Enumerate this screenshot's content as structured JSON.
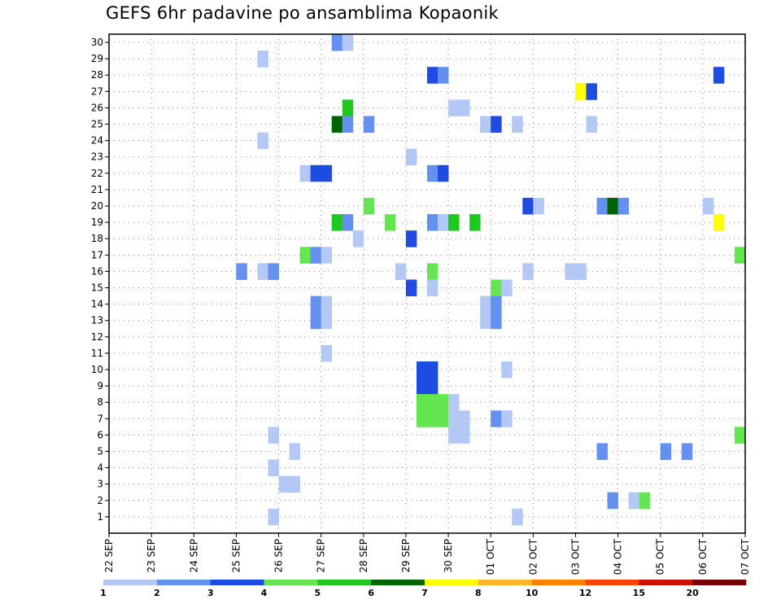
{
  "chart_data": {
    "type": "heatmap",
    "title": "GEFS 6hr padavine po ansamblima Kopaonik",
    "y_categories": [
      "1",
      "2",
      "3",
      "4",
      "5",
      "6",
      "7",
      "8",
      "9",
      "10",
      "11",
      "12",
      "13",
      "14",
      "15",
      "16",
      "17",
      "18",
      "19",
      "20",
      "21",
      "22",
      "23",
      "24",
      "25",
      "26",
      "27",
      "28",
      "29",
      "30"
    ],
    "x_ticks": [
      {
        "t": 0,
        "label": "22 SEP"
      },
      {
        "t": 4,
        "label": "23 SEP"
      },
      {
        "t": 8,
        "label": "24 SEP"
      },
      {
        "t": 12,
        "label": "25 SEP"
      },
      {
        "t": 16,
        "label": "26 SEP"
      },
      {
        "t": 20,
        "label": "27 SEP"
      },
      {
        "t": 24,
        "label": "28 SEP"
      },
      {
        "t": 28,
        "label": "29 SEP"
      },
      {
        "t": 32,
        "label": "30 SEP"
      },
      {
        "t": 36,
        "label": "01 OCT"
      },
      {
        "t": 40,
        "label": "02 OCT"
      },
      {
        "t": 44,
        "label": "03 OCT"
      },
      {
        "t": 48,
        "label": "04 OCT"
      },
      {
        "t": 52,
        "label": "05 OCT"
      },
      {
        "t": 56,
        "label": "06 OCT"
      },
      {
        "t": 60,
        "label": "07 OCT"
      }
    ],
    "x_unit": "6-hour steps from 22 SEP",
    "xlim": [
      0,
      60
    ],
    "grid": true,
    "colorbar": {
      "boundaries": [
        "1",
        "2",
        "3",
        "4",
        "5",
        "6",
        "7",
        "8",
        "10",
        "12",
        "15",
        "20"
      ],
      "colors": [
        "#b4c8f5",
        "#6490f0",
        "#1e4be1",
        "#64e650",
        "#1ec81e",
        "#006400",
        "#ffff00",
        "#ffb432",
        "#ff8200",
        "#ff4600",
        "#c81400",
        "#780000"
      ]
    },
    "cells": [
      {
        "member": 30,
        "t": 21.5,
        "color": "#6490f0"
      },
      {
        "member": 30,
        "t": 22.5,
        "color": "#b4c8f5"
      },
      {
        "member": 29,
        "t": 14.5,
        "color": "#b4c8f5"
      },
      {
        "member": 28,
        "t": 30.5,
        "color": "#1e4be1"
      },
      {
        "member": 28,
        "t": 31.5,
        "color": "#6490f0"
      },
      {
        "member": 28,
        "t": 57.5,
        "color": "#1e4be1"
      },
      {
        "member": 27,
        "t": 44.5,
        "color": "#ffff00"
      },
      {
        "member": 27,
        "t": 45.5,
        "color": "#1e4be1"
      },
      {
        "member": 26,
        "t": 22.5,
        "color": "#1ec81e"
      },
      {
        "member": 26,
        "t": 32.5,
        "color": "#b4c8f5"
      },
      {
        "member": 26,
        "t": 33.5,
        "color": "#b4c8f5"
      },
      {
        "member": 25,
        "t": 21.5,
        "color": "#006400"
      },
      {
        "member": 25,
        "t": 22.5,
        "color": "#6490f0"
      },
      {
        "member": 25,
        "t": 24.5,
        "color": "#6490f0"
      },
      {
        "member": 25,
        "t": 35.5,
        "color": "#b4c8f5"
      },
      {
        "member": 25,
        "t": 36.5,
        "color": "#1e4be1"
      },
      {
        "member": 25,
        "t": 38.5,
        "color": "#b4c8f5"
      },
      {
        "member": 25,
        "t": 45.5,
        "color": "#b4c8f5"
      },
      {
        "member": 24,
        "t": 14.5,
        "color": "#b4c8f5"
      },
      {
        "member": 23,
        "t": 28.5,
        "color": "#b4c8f5"
      },
      {
        "member": 22,
        "t": 18.5,
        "color": "#b4c8f5"
      },
      {
        "member": 22,
        "t": 19.5,
        "color": "#1e4be1"
      },
      {
        "member": 22,
        "t": 20.5,
        "color": "#1e4be1"
      },
      {
        "member": 22,
        "t": 30.5,
        "color": "#6490f0"
      },
      {
        "member": 22,
        "t": 31.5,
        "color": "#1e4be1"
      },
      {
        "member": 20,
        "t": 24.5,
        "color": "#64e650"
      },
      {
        "member": 20,
        "t": 39.5,
        "color": "#1e4be1"
      },
      {
        "member": 20,
        "t": 40.5,
        "color": "#b4c8f5"
      },
      {
        "member": 20,
        "t": 46.5,
        "color": "#6490f0"
      },
      {
        "member": 20,
        "t": 47.5,
        "color": "#006400"
      },
      {
        "member": 20,
        "t": 48.5,
        "color": "#6490f0"
      },
      {
        "member": 20,
        "t": 56.5,
        "color": "#b4c8f5"
      },
      {
        "member": 19,
        "t": 21.5,
        "color": "#1ec81e"
      },
      {
        "member": 19,
        "t": 22.5,
        "color": "#6490f0"
      },
      {
        "member": 19,
        "t": 26.5,
        "color": "#64e650"
      },
      {
        "member": 19,
        "t": 30.5,
        "color": "#6490f0"
      },
      {
        "member": 19,
        "t": 31.5,
        "color": "#b4c8f5"
      },
      {
        "member": 19,
        "t": 32.5,
        "color": "#1ec81e"
      },
      {
        "member": 19,
        "t": 34.5,
        "color": "#1ec81e"
      },
      {
        "member": 19,
        "t": 57.5,
        "color": "#ffff00"
      },
      {
        "member": 18,
        "t": 23.5,
        "color": "#b4c8f5"
      },
      {
        "member": 18,
        "t": 28.5,
        "color": "#1e4be1"
      },
      {
        "member": 17,
        "t": 18.5,
        "color": "#64e650"
      },
      {
        "member": 17,
        "t": 19.5,
        "color": "#6490f0"
      },
      {
        "member": 17,
        "t": 20.5,
        "color": "#b4c8f5"
      },
      {
        "member": 17,
        "t": 59.5,
        "color": "#64e650"
      },
      {
        "member": 16,
        "t": 12.5,
        "color": "#6490f0"
      },
      {
        "member": 16,
        "t": 14.5,
        "color": "#b4c8f5"
      },
      {
        "member": 16,
        "t": 15.5,
        "color": "#6490f0"
      },
      {
        "member": 16,
        "t": 27.5,
        "color": "#b4c8f5"
      },
      {
        "member": 16,
        "t": 30.5,
        "color": "#64e650"
      },
      {
        "member": 16,
        "t": 39.5,
        "color": "#b4c8f5"
      },
      {
        "member": 16,
        "t": 43.5,
        "color": "#b4c8f5"
      },
      {
        "member": 16,
        "t": 44.5,
        "color": "#b4c8f5"
      },
      {
        "member": 15,
        "t": 28.5,
        "color": "#1e4be1"
      },
      {
        "member": 15,
        "t": 30.5,
        "color": "#b4c8f5"
      },
      {
        "member": 15,
        "t": 36.5,
        "color": "#64e650"
      },
      {
        "member": 15,
        "t": 37.5,
        "color": "#b4c8f5"
      },
      {
        "member": 14,
        "t": 19.5,
        "color": "#6490f0"
      },
      {
        "member": 14,
        "t": 20.5,
        "color": "#b4c8f5"
      },
      {
        "member": 14,
        "t": 35.5,
        "color": "#b4c8f5"
      },
      {
        "member": 14,
        "t": 36.5,
        "color": "#6490f0"
      },
      {
        "member": 13,
        "t": 19.5,
        "color": "#6490f0"
      },
      {
        "member": 13,
        "t": 20.5,
        "color": "#b4c8f5"
      },
      {
        "member": 13,
        "t": 35.5,
        "color": "#b4c8f5"
      },
      {
        "member": 13,
        "t": 36.5,
        "color": "#6490f0"
      },
      {
        "member": 11,
        "t": 20.5,
        "color": "#b4c8f5"
      },
      {
        "member": 10,
        "t": 29.5,
        "color": "#1e4be1"
      },
      {
        "member": 10,
        "t": 30.5,
        "color": "#1e4be1"
      },
      {
        "member": 10,
        "t": 37.5,
        "color": "#b4c8f5"
      },
      {
        "member": 9,
        "t": 29.5,
        "color": "#1e4be1"
      },
      {
        "member": 9,
        "t": 30.5,
        "color": "#1e4be1"
      },
      {
        "member": 8,
        "t": 29.5,
        "color": "#64e650"
      },
      {
        "member": 8,
        "t": 30.5,
        "color": "#64e650"
      },
      {
        "member": 8,
        "t": 31.5,
        "color": "#64e650"
      },
      {
        "member": 8,
        "t": 32.5,
        "color": "#b4c8f5"
      },
      {
        "member": 7,
        "t": 29.5,
        "color": "#64e650"
      },
      {
        "member": 7,
        "t": 30.5,
        "color": "#64e650"
      },
      {
        "member": 7,
        "t": 31.5,
        "color": "#64e650"
      },
      {
        "member": 7,
        "t": 32.5,
        "color": "#b4c8f5"
      },
      {
        "member": 7,
        "t": 33.5,
        "color": "#b4c8f5"
      },
      {
        "member": 7,
        "t": 36.5,
        "color": "#6490f0"
      },
      {
        "member": 7,
        "t": 37.5,
        "color": "#b4c8f5"
      },
      {
        "member": 6,
        "t": 15.5,
        "color": "#b4c8f5"
      },
      {
        "member": 6,
        "t": 32.5,
        "color": "#b4c8f5"
      },
      {
        "member": 6,
        "t": 33.5,
        "color": "#b4c8f5"
      },
      {
        "member": 6,
        "t": 59.5,
        "color": "#64e650"
      },
      {
        "member": 5,
        "t": 17.5,
        "color": "#b4c8f5"
      },
      {
        "member": 5,
        "t": 46.5,
        "color": "#6490f0"
      },
      {
        "member": 5,
        "t": 52.5,
        "color": "#6490f0"
      },
      {
        "member": 5,
        "t": 54.5,
        "color": "#6490f0"
      },
      {
        "member": 4,
        "t": 15.5,
        "color": "#b4c8f5"
      },
      {
        "member": 3,
        "t": 16.5,
        "color": "#b4c8f5"
      },
      {
        "member": 3,
        "t": 17.5,
        "color": "#b4c8f5"
      },
      {
        "member": 2,
        "t": 47.5,
        "color": "#6490f0"
      },
      {
        "member": 2,
        "t": 49.5,
        "color": "#b4c8f5"
      },
      {
        "member": 2,
        "t": 50.5,
        "color": "#64e650"
      },
      {
        "member": 1,
        "t": 15.5,
        "color": "#b4c8f5"
      },
      {
        "member": 1,
        "t": 38.5,
        "color": "#b4c8f5"
      }
    ]
  }
}
